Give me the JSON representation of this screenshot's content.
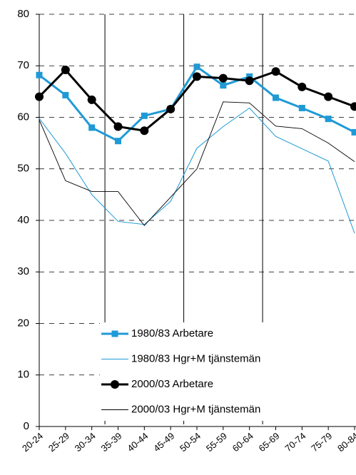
{
  "chart_data": {
    "type": "line",
    "categories": [
      "20-24",
      "25-29",
      "30-34",
      "35-39",
      "40-44",
      "45-49",
      "50-54",
      "55-59",
      "60-64",
      "65-69",
      "70-74",
      "75-79",
      "80-84"
    ],
    "series": [
      {
        "name": "1980/83 Arbetare",
        "color": "#1f9ad6",
        "values": [
          68.2,
          64.3,
          58,
          55.4,
          60.3,
          61.6,
          69.8,
          66.2,
          67.9,
          63.8,
          61.8,
          59.7,
          57.1
        ]
      },
      {
        "name": "1980/83 Hgr+M tjänstemän",
        "color": "#1f9ad6",
        "values": [
          59.8,
          53,
          45,
          39.8,
          39.2,
          43.7,
          54,
          58.2,
          61.8,
          56.3,
          53.9,
          51.5,
          37.5
        ]
      },
      {
        "name": "2000/03 Arbetare",
        "color": "#000000",
        "values": [
          64,
          69.2,
          63.4,
          58.2,
          57.4,
          61.6,
          67.9,
          67.6,
          67.1,
          68.9,
          65.9,
          64,
          62.1
        ]
      },
      {
        "name": "2000/03 Hgr+M tjänstemän",
        "color": "#000000",
        "values": [
          59.5,
          47.7,
          45.6,
          45.6,
          39,
          44.5,
          50,
          63,
          62.8,
          58.3,
          57.8,
          55,
          51.4
        ]
      }
    ],
    "ylim": [
      0,
      80
    ],
    "yticks": [
      0,
      10,
      20,
      30,
      40,
      50,
      60,
      70,
      80
    ],
    "grid": true,
    "legend": "lower-right"
  }
}
